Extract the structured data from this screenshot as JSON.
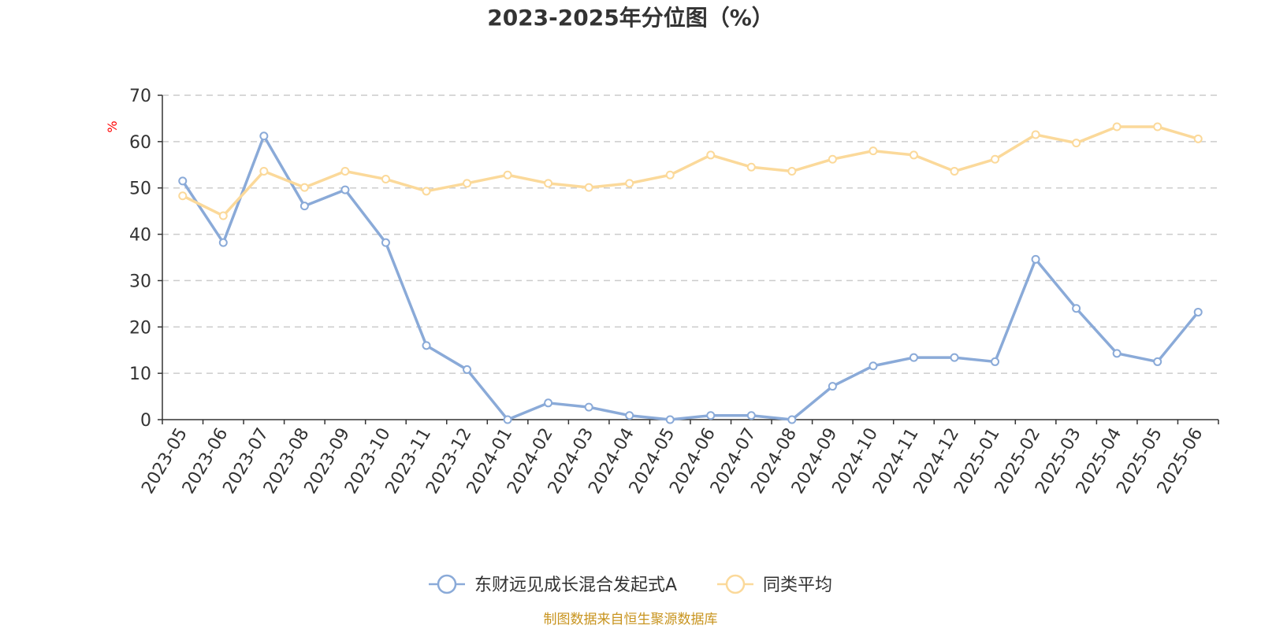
{
  "chart_data": {
    "type": "line",
    "title": "2023-2025年分位图（%）",
    "ylabel": "%",
    "xlabel": "",
    "ylim": [
      0,
      70
    ],
    "yticks": [
      0,
      10,
      20,
      30,
      40,
      50,
      60,
      70
    ],
    "grid": true,
    "legend_position": "bottom",
    "categories": [
      "2023-05",
      "2023-06",
      "2023-07",
      "2023-08",
      "2023-09",
      "2023-10",
      "2023-11",
      "2023-12",
      "2024-01",
      "2024-02",
      "2024-03",
      "2024-04",
      "2024-05",
      "2024-06",
      "2024-07",
      "2024-08",
      "2024-09",
      "2024-10",
      "2024-11",
      "2024-12",
      "2025-01",
      "2025-02",
      "2025-03",
      "2025-04",
      "2025-05",
      "2025-06"
    ],
    "series": [
      {
        "name": "东财远见成长混合发起式A",
        "color": "#8aaad8",
        "values": [
          51.5,
          38.2,
          61.2,
          46.1,
          49.6,
          38.2,
          16.0,
          10.8,
          0.0,
          3.6,
          2.7,
          0.9,
          0.0,
          0.9,
          0.9,
          0.0,
          7.2,
          11.6,
          13.4,
          13.4,
          12.5,
          34.6,
          24.0,
          14.3,
          12.5,
          23.2
        ]
      },
      {
        "name": "同类平均",
        "color": "#fbd99a",
        "values": [
          48.3,
          44.0,
          53.6,
          50.1,
          53.6,
          51.9,
          49.3,
          51.0,
          52.8,
          51.0,
          50.1,
          51.0,
          52.8,
          57.1,
          54.5,
          53.6,
          56.2,
          58.0,
          57.1,
          53.6,
          56.2,
          61.5,
          59.7,
          63.2,
          63.2,
          60.6
        ]
      }
    ]
  },
  "footer": {
    "source": "制图数据来自恒生聚源数据库"
  }
}
